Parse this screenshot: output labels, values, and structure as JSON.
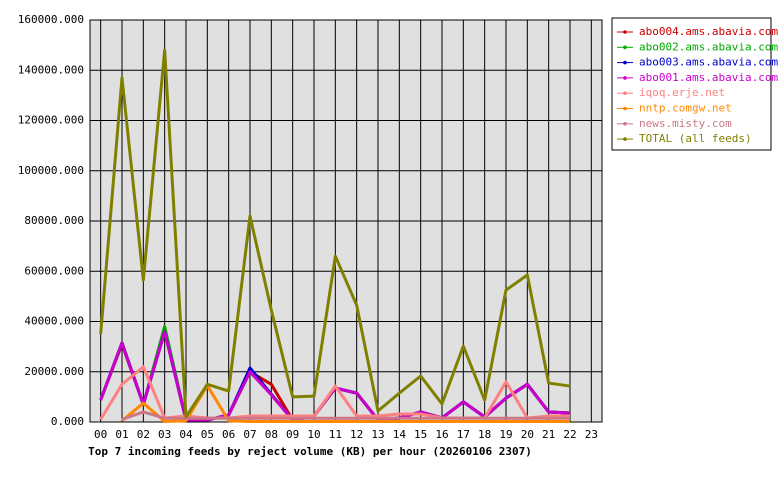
{
  "chart_data": {
    "type": "line",
    "title": "Top 7 incoming feeds by reject volume (KB) per hour (20260106 2307)",
    "categories": [
      "00",
      "01",
      "02",
      "03",
      "04",
      "05",
      "06",
      "07",
      "08",
      "09",
      "10",
      "11",
      "12",
      "13",
      "14",
      "15",
      "16",
      "17",
      "18",
      "19",
      "20",
      "21",
      "22",
      "23"
    ],
    "ylim": [
      0,
      160000
    ],
    "yticks": [
      {
        "value": 0,
        "label": "0.000"
      },
      {
        "value": 20000,
        "label": "20000.000"
      },
      {
        "value": 40000,
        "label": "40000.000"
      },
      {
        "value": 60000,
        "label": "60000.000"
      },
      {
        "value": 80000,
        "label": "80000.000"
      },
      {
        "value": 100000,
        "label": "100000.000"
      },
      {
        "value": 120000,
        "label": "120000.000"
      },
      {
        "value": 140000,
        "label": "140000.000"
      },
      {
        "value": 160000,
        "label": "160000.000"
      }
    ],
    "grid": true,
    "series": [
      {
        "name": "abo004.ams.abavia.com",
        "color": "#cc0000",
        "values": [
          8800,
          31000,
          7000,
          36000,
          800,
          800,
          2800,
          20000,
          15000,
          800,
          2400,
          13500,
          11500,
          800,
          1600,
          4000,
          1600,
          8000,
          2000,
          9500,
          15000,
          4000,
          3600,
          null
        ]
      },
      {
        "name": "abo002.ams.abavia.com",
        "color": "#00aa00",
        "values": [
          8800,
          31500,
          7000,
          38000,
          800,
          800,
          2800,
          20000,
          11000,
          800,
          2400,
          13500,
          11500,
          800,
          1600,
          4000,
          1600,
          8000,
          2000,
          9500,
          15000,
          4000,
          3600,
          null
        ]
      },
      {
        "name": "abo003.ams.abavia.com",
        "color": "#0000cc",
        "values": [
          8800,
          31500,
          7000,
          36000,
          800,
          800,
          2800,
          21500,
          11000,
          800,
          2400,
          13500,
          11500,
          800,
          1600,
          4000,
          1600,
          8000,
          2000,
          9500,
          15000,
          4000,
          3600,
          null
        ]
      },
      {
        "name": "abo001.ams.abavia.com",
        "color": "#cc00cc",
        "values": [
          8800,
          31500,
          7000,
          36000,
          800,
          800,
          2800,
          20000,
          10800,
          800,
          2400,
          13500,
          11500,
          800,
          1600,
          4000,
          1600,
          8000,
          2000,
          9500,
          15000,
          4000,
          3600,
          null
        ]
      },
      {
        "name": "iqoq.erje.net",
        "color": "#ff8080",
        "values": [
          1000,
          15000,
          22000,
          1600,
          2400,
          1600,
          1600,
          2400,
          2400,
          2400,
          2400,
          14300,
          2400,
          2400,
          3200,
          3200,
          1600,
          1600,
          1600,
          16000,
          1600,
          2400,
          2400,
          null
        ]
      },
      {
        "name": "nntp.comgw.net",
        "color": "#ff8800",
        "values": [
          null,
          500,
          7500,
          200,
          500,
          14500,
          500,
          200,
          200,
          200,
          200,
          200,
          200,
          200,
          200,
          200,
          200,
          200,
          200,
          200,
          200,
          200,
          200,
          null
        ]
      },
      {
        "name": "news.misty.com",
        "color": "#cc7788",
        "values": [
          null,
          1000,
          4000,
          1500,
          1500,
          1500,
          1500,
          1500,
          1500,
          1500,
          1500,
          1500,
          1500,
          1500,
          1500,
          1500,
          1500,
          1500,
          1500,
          1500,
          1500,
          1500,
          1500,
          null
        ]
      },
      {
        "name": "TOTAL (all feeds)",
        "color": "#808000",
        "values": [
          35000,
          137000,
          56500,
          148000,
          2000,
          15000,
          12300,
          82000,
          44500,
          10000,
          10300,
          66000,
          46500,
          4400,
          11500,
          18300,
          7200,
          30200,
          8700,
          52500,
          58500,
          15500,
          14300,
          null
        ]
      }
    ]
  }
}
